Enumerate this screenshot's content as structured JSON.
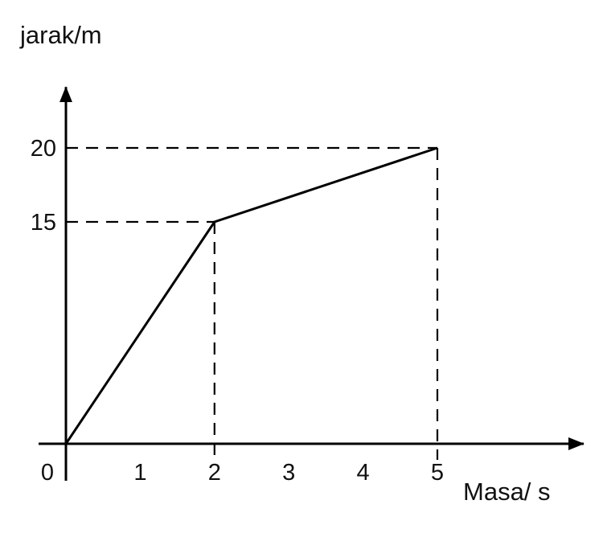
{
  "chart_data": {
    "type": "line",
    "xlabel": "Masa/ s",
    "ylabel": "jarak/m",
    "origin_label": "0",
    "x_ticks": [
      "1",
      "2",
      "3",
      "4",
      "5"
    ],
    "y_ticks": [
      "15",
      "20"
    ],
    "xlim": [
      0,
      5.8
    ],
    "ylim": [
      0,
      24.5
    ],
    "series": [
      {
        "x": [
          0,
          2,
          5
        ],
        "y": [
          0,
          15,
          20
        ]
      }
    ],
    "guides": [
      {
        "x": 2,
        "y": 15
      },
      {
        "x": 5,
        "y": 20
      }
    ],
    "line_color": "#000000"
  }
}
